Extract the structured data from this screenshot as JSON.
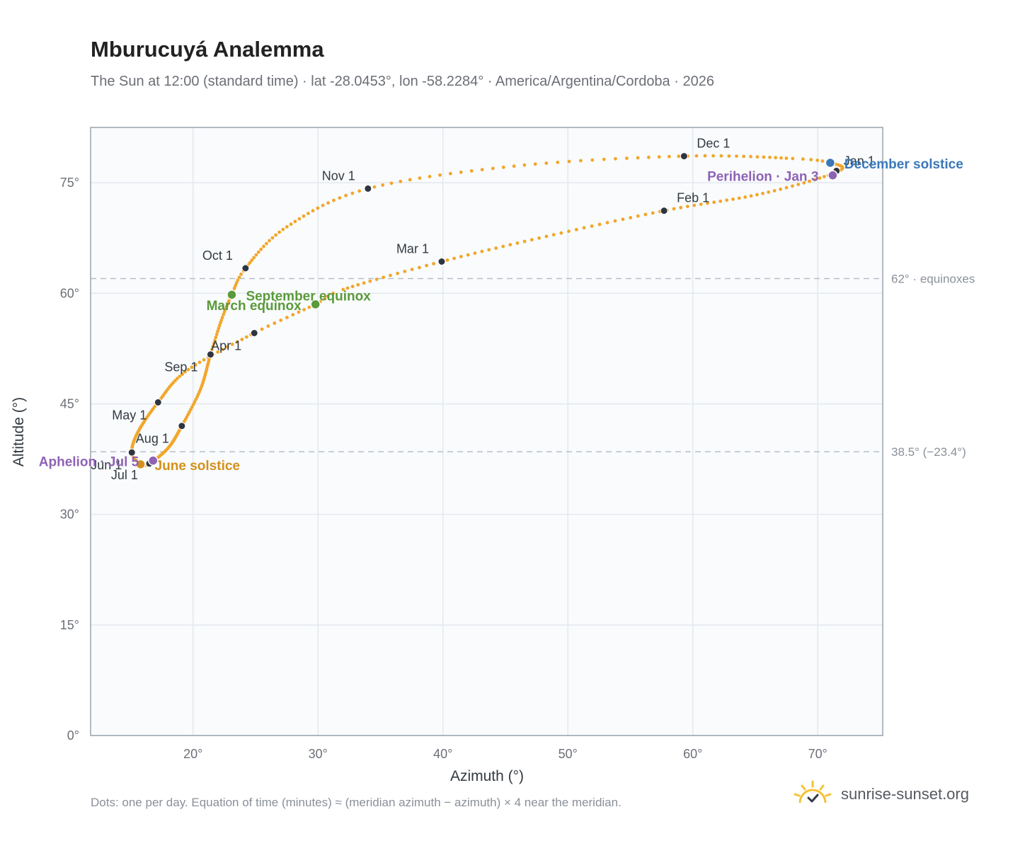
{
  "header": {
    "title": "Mburucuyá Analemma",
    "subtitle": "The Sun at 12:00 (standard time) · lat -28.0453°, lon -58.2284° · America/Argentina/Cordoba · 2026"
  },
  "footer": {
    "note": "Dots: one per day. Equation of time (minutes) ≈ (meridian azimuth − azimuth) × 4 near the meridian.",
    "brand": "sunrise-sunset.org",
    "brand_icon": "sun-logo-icon"
  },
  "colors": {
    "path": "#f2a62a",
    "month_dot": "#2f3540",
    "equinox": "#5a9a3a",
    "june_solstice": "#d4901a",
    "december_solstice": "#3a78b8",
    "apsis": "#8e63b5",
    "grid": "#e4e8ee",
    "plot_bg": "#f9fbfd",
    "frame": "#9aa3ae",
    "ref_line": "#b9bec6"
  },
  "chart_data": {
    "type": "scatter",
    "xlabel": "Azimuth (°)",
    "ylabel": "Altitude (°)",
    "xlim": [
      11.8,
      75.2
    ],
    "ylim": [
      0,
      82.5
    ],
    "xticks": [
      20,
      30,
      40,
      50,
      60,
      70
    ],
    "yticks": [
      0,
      15,
      30,
      45,
      60,
      75
    ],
    "xtick_labels": [
      "20°",
      "30°",
      "40°",
      "50°",
      "60°",
      "70°"
    ],
    "ytick_labels": [
      "0°",
      "15°",
      "30°",
      "45°",
      "60°",
      "75°"
    ],
    "grid": true,
    "reference_lines": [
      {
        "y": 62.0,
        "label": "62° · equinoxes"
      },
      {
        "y": 38.5,
        "label": "38.5° (−23.4°)"
      }
    ],
    "anchors": [
      {
        "m": 0,
        "x": 71.6,
        "y": 76.5
      },
      {
        "m": 0.5,
        "x": 65.5,
        "y": 73.5
      },
      {
        "m": 1,
        "x": 57.7,
        "y": 71.2
      },
      {
        "m": 1.5,
        "x": 48.5,
        "y": 67.8
      },
      {
        "m": 2,
        "x": 39.9,
        "y": 64.3
      },
      {
        "m": 2.5,
        "x": 32.0,
        "y": 60.5
      },
      {
        "m": 2.65,
        "x": 29.8,
        "y": 58.5
      },
      {
        "m": 3,
        "x": 24.9,
        "y": 54.6
      },
      {
        "m": 3.5,
        "x": 19.5,
        "y": 49.5
      },
      {
        "m": 4,
        "x": 17.2,
        "y": 45.2
      },
      {
        "m": 4.5,
        "x": 15.6,
        "y": 41.2
      },
      {
        "m": 5,
        "x": 15.1,
        "y": 38.4
      },
      {
        "m": 5.65,
        "x": 15.8,
        "y": 36.8
      },
      {
        "m": 6,
        "x": 16.5,
        "y": 36.9
      },
      {
        "m": 6.5,
        "x": 18.0,
        "y": 39.0
      },
      {
        "m": 7,
        "x": 19.1,
        "y": 42.0
      },
      {
        "m": 7.5,
        "x": 20.6,
        "y": 47.0
      },
      {
        "m": 8,
        "x": 21.4,
        "y": 51.7
      },
      {
        "m": 8.4,
        "x": 22.3,
        "y": 56.5
      },
      {
        "m": 8.7,
        "x": 23.1,
        "y": 59.8
      },
      {
        "m": 9,
        "x": 24.2,
        "y": 63.4
      },
      {
        "m": 9.5,
        "x": 27.5,
        "y": 69.0
      },
      {
        "m": 10,
        "x": 34.0,
        "y": 74.2
      },
      {
        "m": 10.5,
        "x": 46.0,
        "y": 77.3
      },
      {
        "m": 11,
        "x": 59.3,
        "y": 78.6
      },
      {
        "m": 11.5,
        "x": 67.8,
        "y": 78.3
      },
      {
        "m": 11.7,
        "x": 71.0,
        "y": 77.7
      },
      {
        "m": 12,
        "x": 71.6,
        "y": 76.5
      }
    ],
    "month_markers": [
      {
        "label": "Jan 1",
        "x": 71.5,
        "y": 76.6,
        "anchor": "start",
        "dx": 10,
        "dy": -8
      },
      {
        "label": "Feb 1",
        "x": 57.7,
        "y": 71.2,
        "anchor": "start",
        "dx": 18,
        "dy": -12
      },
      {
        "label": "Mar 1",
        "x": 39.9,
        "y": 64.3,
        "anchor": "end",
        "dx": -18,
        "dy": -12
      },
      {
        "label": "Apr 1",
        "x": 24.9,
        "y": 54.6,
        "anchor": "end",
        "dx": -18,
        "dy": 24
      },
      {
        "label": "May 1",
        "x": 17.2,
        "y": 45.2,
        "anchor": "end",
        "dx": -16,
        "dy": 24
      },
      {
        "label": "Jun 1",
        "x": 15.1,
        "y": 38.4,
        "anchor": "end",
        "dx": -14,
        "dy": 24
      },
      {
        "label": "Jul 1",
        "x": 16.5,
        "y": 36.9,
        "anchor": "end",
        "dx": -16,
        "dy": 22
      },
      {
        "label": "Aug 1",
        "x": 19.1,
        "y": 42.0,
        "anchor": "end",
        "dx": -18,
        "dy": 24
      },
      {
        "label": "Sep 1",
        "x": 21.4,
        "y": 51.7,
        "anchor": "end",
        "dx": -18,
        "dy": 24
      },
      {
        "label": "Oct 1",
        "x": 24.2,
        "y": 63.4,
        "anchor": "end",
        "dx": -18,
        "dy": -12
      },
      {
        "label": "Nov 1",
        "x": 34.0,
        "y": 74.2,
        "anchor": "end",
        "dx": -18,
        "dy": -12
      },
      {
        "label": "Dec 1",
        "x": 59.3,
        "y": 78.6,
        "anchor": "start",
        "dx": 18,
        "dy": -12
      }
    ],
    "events": [
      {
        "label": "March equinox",
        "x": 29.8,
        "y": 58.5,
        "color": "#5a9a3a",
        "anchor": "end",
        "dx": -20,
        "dy": 8
      },
      {
        "label": "September equinox",
        "x": 23.1,
        "y": 59.8,
        "color": "#5a9a3a",
        "anchor": "start",
        "dx": 20,
        "dy": 8
      },
      {
        "label": "June solstice",
        "x": 15.8,
        "y": 36.8,
        "color": "#d4901a",
        "anchor": "start",
        "dx": 20,
        "dy": 8
      },
      {
        "label": "December solstice",
        "x": 71.0,
        "y": 77.7,
        "color": "#3a78b8",
        "anchor": "start",
        "dx": 20,
        "dy": 8
      },
      {
        "label": "Aphelion · Jul 5",
        "x": 16.8,
        "y": 37.3,
        "color": "#8e63b5",
        "anchor": "end",
        "dx": -20,
        "dy": 8
      },
      {
        "label": "Perihelion · Jan 3",
        "x": 71.2,
        "y": 76.0,
        "color": "#8e63b5",
        "anchor": "end",
        "dx": -20,
        "dy": 8
      }
    ]
  }
}
